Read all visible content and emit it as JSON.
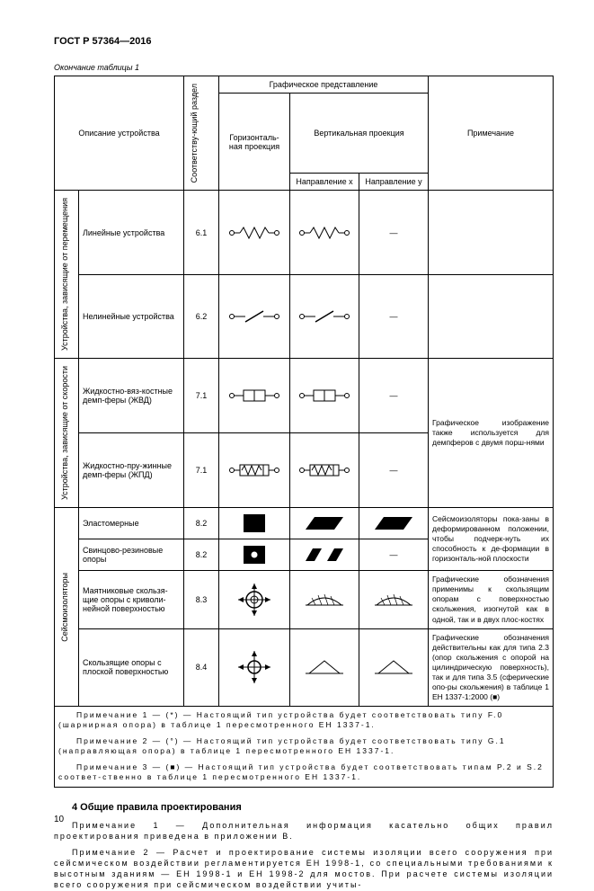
{
  "doc": {
    "id": "ГОСТ Р 57364—2016",
    "table_caption": "Окончание таблицы 1",
    "page_number": "10"
  },
  "headers": {
    "device_desc": "Описание устройства",
    "section_col": "Соответству-ющий раздел",
    "graphic_rep": "Графическое представление",
    "horiz_proj": "Горизонталь-ная проекция",
    "vert_proj": "Вертикальная проекция",
    "dir_x": "Направление x",
    "dir_y": "Направление y",
    "note_col": "Примечание"
  },
  "groups": {
    "g1": "Устройства, зависящие от перемещения",
    "g2": "Устройства, зависящие от скорости",
    "g3": "Сейсмоизоляторы"
  },
  "rows": {
    "r1": {
      "name": "Линейные устройства",
      "sec": "6.1"
    },
    "r2": {
      "name": "Нелинейные устройства",
      "sec": "6.2"
    },
    "r3": {
      "name": "Жидкостно-вяз-костные демп-феры (ЖВД)",
      "sec": "7.1",
      "note": "Графическое изображение также используется для демпферов с двумя порш-нями"
    },
    "r4": {
      "name": "Жидкостно-пру-жинные демп-феры (ЖПД)",
      "sec": "7.1"
    },
    "r5": {
      "name": "Эластомерные",
      "sec": "8.2"
    },
    "r6": {
      "name": "Свинцово-резиновые опоры",
      "sec": "8.2"
    },
    "r5_6_note": "Сейсмоизоляторы пока-заны в деформированном положении, чтобы подчерк-нуть их способность к де-формации в горизонталь-ной плоскости",
    "r7": {
      "name": "Маятниковые скользя-щие опоры с криволи-нейной поверхностью",
      "sec": "8.3",
      "note": "Графические обозначения применимы к скользящим опорам с поверхностью скольжения, изогнутой как в одной, так и в двух плос-костях"
    },
    "r8": {
      "name": "Скользящие опоры с плоской поверхностью",
      "sec": "8.4",
      "note": "Графические обозначения действительны как для типа 2.3 (опор скольжения с опорой на цилиндрическую поверхность), так и для типа 3.5 (сферические опо-ры скольжения) в таблице 1 ЕН 1337-1:2000 (■)"
    }
  },
  "table_notes": {
    "n1": "Примечание 1 — (*) — Настоящий тип устройства будет соответствовать типу F.0 (шарнирная опора) в таблице 1 пересмотренного ЕН 1337-1.",
    "n2": "Примечание 2 — (°) — Настоящий тип устройства будет соответствовать типу G.1 (направляющая опора) в таблице 1 пересмотренного ЕН 1337-1.",
    "n3": "Примечание 3 — (■) — Настоящий тип устройства будет соответствовать типам P.2 и S.2 соответ-ственно в таблице 1 пересмотренного ЕН 1337-1."
  },
  "section4": {
    "title": "4 Общие правила проектирования",
    "note1": "Примечание 1 — Дополнительная информация касательно общих правил проектирования приведена в приложении В.",
    "note2": "Примечание 2 — Расчет и проектирование системы изоляции всего сооружения при сейсмическом воздействии регламентируется ЕН 1998-1, со специальными требованиями к высотным зданиям — ЕН 1998-1 и ЕН 1998-2 для мостов. При расчете системы изоляции всего сооружения при сейсмическом воздействии учиты-"
  },
  "dash": "—"
}
